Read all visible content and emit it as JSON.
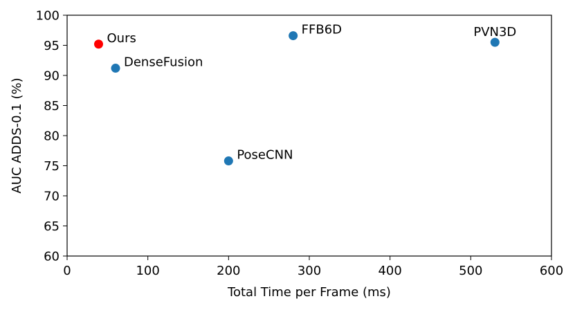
{
  "chart_data": {
    "type": "scatter",
    "xlabel": "Total Time per Frame (ms)",
    "ylabel": "AUC ADDS-0.1 (%)",
    "xlim": [
      0,
      600
    ],
    "ylim": [
      60,
      100
    ],
    "xticks": [
      0,
      100,
      200,
      300,
      400,
      500,
      600
    ],
    "yticks": [
      60,
      65,
      70,
      75,
      80,
      85,
      90,
      95,
      100
    ],
    "xtick_labels": [
      "0",
      "100",
      "200",
      "300",
      "400",
      "500",
      "600"
    ],
    "ytick_labels": [
      "60",
      "65",
      "70",
      "75",
      "80",
      "85",
      "90",
      "95",
      "100"
    ],
    "grid": false,
    "points": [
      {
        "label": "Ours",
        "x": 39,
        "y": 95.2,
        "color": "#ff0000",
        "label_pos": "right"
      },
      {
        "label": "DenseFusion",
        "x": 60,
        "y": 91.2,
        "color": "#1f77b4",
        "label_pos": "right"
      },
      {
        "label": "FFB6D",
        "x": 280,
        "y": 96.6,
        "color": "#1f77b4",
        "label_pos": "right"
      },
      {
        "label": "PVN3D",
        "x": 530,
        "y": 95.5,
        "color": "#1f77b4",
        "label_pos": "above"
      },
      {
        "label": "PoseCNN",
        "x": 200,
        "y": 75.8,
        "color": "#1f77b4",
        "label_pos": "right"
      }
    ]
  }
}
